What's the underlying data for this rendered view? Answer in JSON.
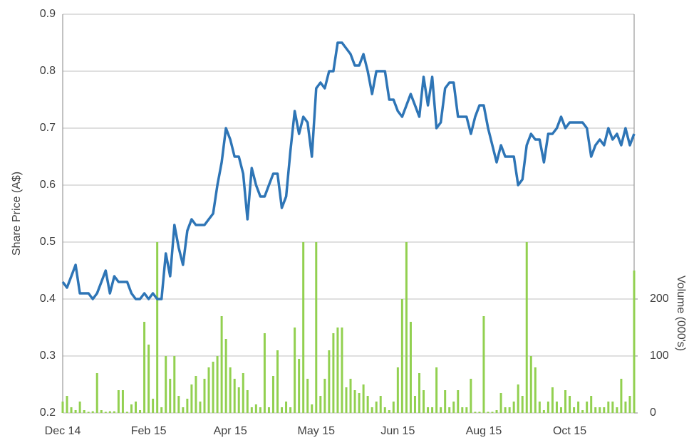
{
  "chart_data": {
    "type": "combo",
    "y_label": "Share Price (A$)",
    "y2_label": "Volume (000's)",
    "categories": [
      "Dec 14",
      null,
      null,
      null,
      null,
      null,
      null,
      null,
      null,
      null,
      null,
      null,
      null,
      null,
      null,
      null,
      null,
      null,
      null,
      null,
      "Feb 15",
      null,
      null,
      null,
      null,
      null,
      null,
      null,
      null,
      null,
      null,
      null,
      null,
      null,
      null,
      null,
      null,
      null,
      null,
      "Apr 15",
      null,
      null,
      null,
      null,
      null,
      null,
      null,
      null,
      null,
      null,
      null,
      null,
      null,
      null,
      null,
      null,
      null,
      null,
      null,
      "May 15",
      null,
      null,
      null,
      null,
      null,
      null,
      null,
      null,
      null,
      null,
      null,
      null,
      null,
      null,
      null,
      null,
      null,
      null,
      "Jun 15",
      null,
      null,
      null,
      null,
      null,
      null,
      null,
      null,
      null,
      null,
      null,
      null,
      null,
      null,
      null,
      null,
      null,
      null,
      null,
      "Aug 15",
      null,
      null,
      null,
      null,
      null,
      null,
      null,
      null,
      null,
      null,
      null,
      null,
      null,
      null,
      null,
      null,
      null,
      null,
      null,
      "Oct 15",
      null,
      null,
      null,
      null,
      null,
      null,
      null,
      null,
      null,
      null,
      null,
      null,
      null,
      null,
      null
    ],
    "series": [
      {
        "name": "Volume",
        "type": "bar",
        "axis": "y2",
        "color": "#92d050",
        "values": [
          20,
          30,
          10,
          5,
          20,
          5,
          2,
          3,
          70,
          5,
          2,
          3,
          3,
          40,
          40,
          2,
          15,
          20,
          5,
          160,
          120,
          25,
          300,
          10,
          100,
          60,
          100,
          30,
          10,
          25,
          50,
          65,
          20,
          60,
          80,
          90,
          100,
          170,
          130,
          80,
          60,
          45,
          70,
          40,
          10,
          15,
          10,
          140,
          10,
          65,
          110,
          10,
          20,
          10,
          150,
          95,
          300,
          60,
          15,
          300,
          30,
          60,
          110,
          140,
          150,
          150,
          45,
          60,
          40,
          35,
          50,
          30,
          10,
          20,
          30,
          10,
          5,
          20,
          80,
          200,
          300,
          160,
          30,
          70,
          40,
          10,
          10,
          80,
          10,
          40,
          10,
          20,
          40,
          10,
          10,
          60,
          2,
          2,
          170,
          2,
          2,
          5,
          35,
          10,
          10,
          20,
          50,
          30,
          300,
          100,
          80,
          20,
          5,
          20,
          45,
          20,
          10,
          40,
          30,
          10,
          20,
          5,
          20,
          30,
          10,
          10,
          10,
          20,
          20,
          10,
          60,
          20,
          30,
          250
        ]
      },
      {
        "name": "Share Price",
        "type": "line",
        "color": "#2e75b6",
        "values": [
          0.43,
          0.42,
          0.44,
          0.46,
          0.41,
          0.41,
          0.41,
          0.4,
          0.41,
          0.43,
          0.45,
          0.41,
          0.44,
          0.43,
          0.43,
          0.43,
          0.41,
          0.4,
          0.4,
          0.41,
          0.4,
          0.41,
          0.4,
          0.4,
          0.48,
          0.44,
          0.53,
          0.49,
          0.46,
          0.52,
          0.54,
          0.53,
          0.53,
          0.53,
          0.54,
          0.55,
          0.6,
          0.64,
          0.7,
          0.68,
          0.65,
          0.65,
          0.62,
          0.54,
          0.63,
          0.6,
          0.58,
          0.58,
          0.6,
          0.62,
          0.62,
          0.56,
          0.58,
          0.66,
          0.73,
          0.69,
          0.72,
          0.71,
          0.65,
          0.77,
          0.78,
          0.77,
          0.8,
          0.8,
          0.85,
          0.85,
          0.84,
          0.83,
          0.81,
          0.81,
          0.83,
          0.8,
          0.76,
          0.8,
          0.8,
          0.8,
          0.75,
          0.75,
          0.73,
          0.72,
          0.74,
          0.76,
          0.74,
          0.72,
          0.79,
          0.74,
          0.79,
          0.7,
          0.71,
          0.77,
          0.78,
          0.78,
          0.72,
          0.72,
          0.72,
          0.69,
          0.72,
          0.74,
          0.74,
          0.7,
          0.67,
          0.64,
          0.67,
          0.65,
          0.65,
          0.65,
          0.6,
          0.61,
          0.67,
          0.69,
          0.68,
          0.68,
          0.64,
          0.69,
          0.69,
          0.7,
          0.72,
          0.7,
          0.71,
          0.71,
          0.71,
          0.71,
          0.7,
          0.65,
          0.67,
          0.68,
          0.67,
          0.7,
          0.68,
          0.69,
          0.67,
          0.7,
          0.67,
          0.69
        ]
      }
    ],
    "ylim": [
      0.2,
      0.9
    ],
    "yticks": [
      0.2,
      0.3,
      0.4,
      0.5,
      0.6,
      0.7,
      0.8,
      0.9
    ],
    "y2lim": [
      0,
      700
    ],
    "y2ticks": [
      0,
      100,
      200
    ],
    "grid": true
  }
}
